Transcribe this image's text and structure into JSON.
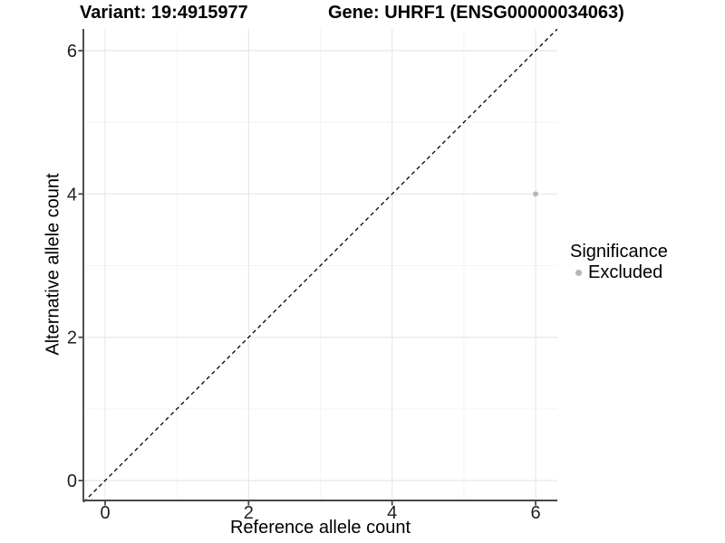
{
  "chart_data": {
    "type": "scatter",
    "title_left": "Variant: 19:4915977",
    "title_right": "Gene: UHRF1 (ENSG00000034063)",
    "xlabel": "Reference allele count",
    "ylabel": "Alternative allele count",
    "xlim": [
      -0.3,
      6.3
    ],
    "ylim": [
      -0.3,
      6.3
    ],
    "x_ticks": [
      0,
      2,
      4,
      6
    ],
    "y_ticks": [
      0,
      2,
      4,
      6
    ],
    "x_minor_gridlines": [
      1,
      3,
      5
    ],
    "y_minor_gridlines": [
      1,
      3,
      5
    ],
    "grid": "major and minor, light gray on white",
    "aspect": "fixed 1:1",
    "series": [
      {
        "name": "Excluded",
        "marker": "circle",
        "color": "#b6b6b6",
        "points": [
          [
            6,
            4
          ]
        ]
      }
    ],
    "reference_line": {
      "kind": "identity",
      "equation": "y = x",
      "style": "dashed",
      "color": "#000000"
    },
    "legend": {
      "title": "Significance",
      "position": "right-middle",
      "items": [
        {
          "label": "Excluded",
          "color": "#b6b6b6",
          "marker": "circle"
        }
      ]
    },
    "style": {
      "background_color": "#ffffff",
      "grid_major_color": "#e8e8e8",
      "grid_minor_color": "#f4f4f4",
      "axis_line_color": "#474747",
      "tick_label_color": "#1f1f1f",
      "text_color": "#000000"
    }
  }
}
